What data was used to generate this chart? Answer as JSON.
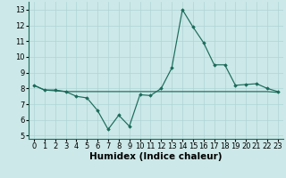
{
  "xlabel": "Humidex (Indice chaleur)",
  "x": [
    0,
    1,
    2,
    3,
    4,
    5,
    6,
    7,
    8,
    9,
    10,
    11,
    12,
    13,
    14,
    15,
    16,
    17,
    18,
    19,
    20,
    21,
    22,
    23
  ],
  "y_main": [
    8.2,
    7.9,
    7.9,
    7.8,
    7.5,
    7.4,
    6.6,
    5.4,
    6.3,
    5.6,
    7.6,
    7.55,
    8.0,
    9.3,
    13.0,
    11.9,
    10.9,
    9.5,
    9.5,
    8.2,
    8.25,
    8.3,
    8.0,
    7.8
  ],
  "y_flat": [
    8.2,
    7.9,
    7.85,
    7.8,
    7.8,
    7.8,
    7.8,
    7.8,
    7.8,
    7.8,
    7.8,
    7.8,
    7.8,
    7.8,
    7.8,
    7.8,
    7.8,
    7.8,
    7.8,
    7.8,
    7.8,
    7.8,
    7.8,
    7.75
  ],
  "ylim": [
    4.8,
    13.5
  ],
  "xlim": [
    -0.5,
    23.5
  ],
  "yticks": [
    5,
    6,
    7,
    8,
    9,
    10,
    11,
    12,
    13
  ],
  "xticks": [
    0,
    1,
    2,
    3,
    4,
    5,
    6,
    7,
    8,
    9,
    10,
    11,
    12,
    13,
    14,
    15,
    16,
    17,
    18,
    19,
    20,
    21,
    22,
    23
  ],
  "line_color": "#1a6b5a",
  "bg_color": "#cce8e8",
  "grid_color": "#aed4d4",
  "tick_fontsize": 6,
  "label_fontsize": 7.5
}
